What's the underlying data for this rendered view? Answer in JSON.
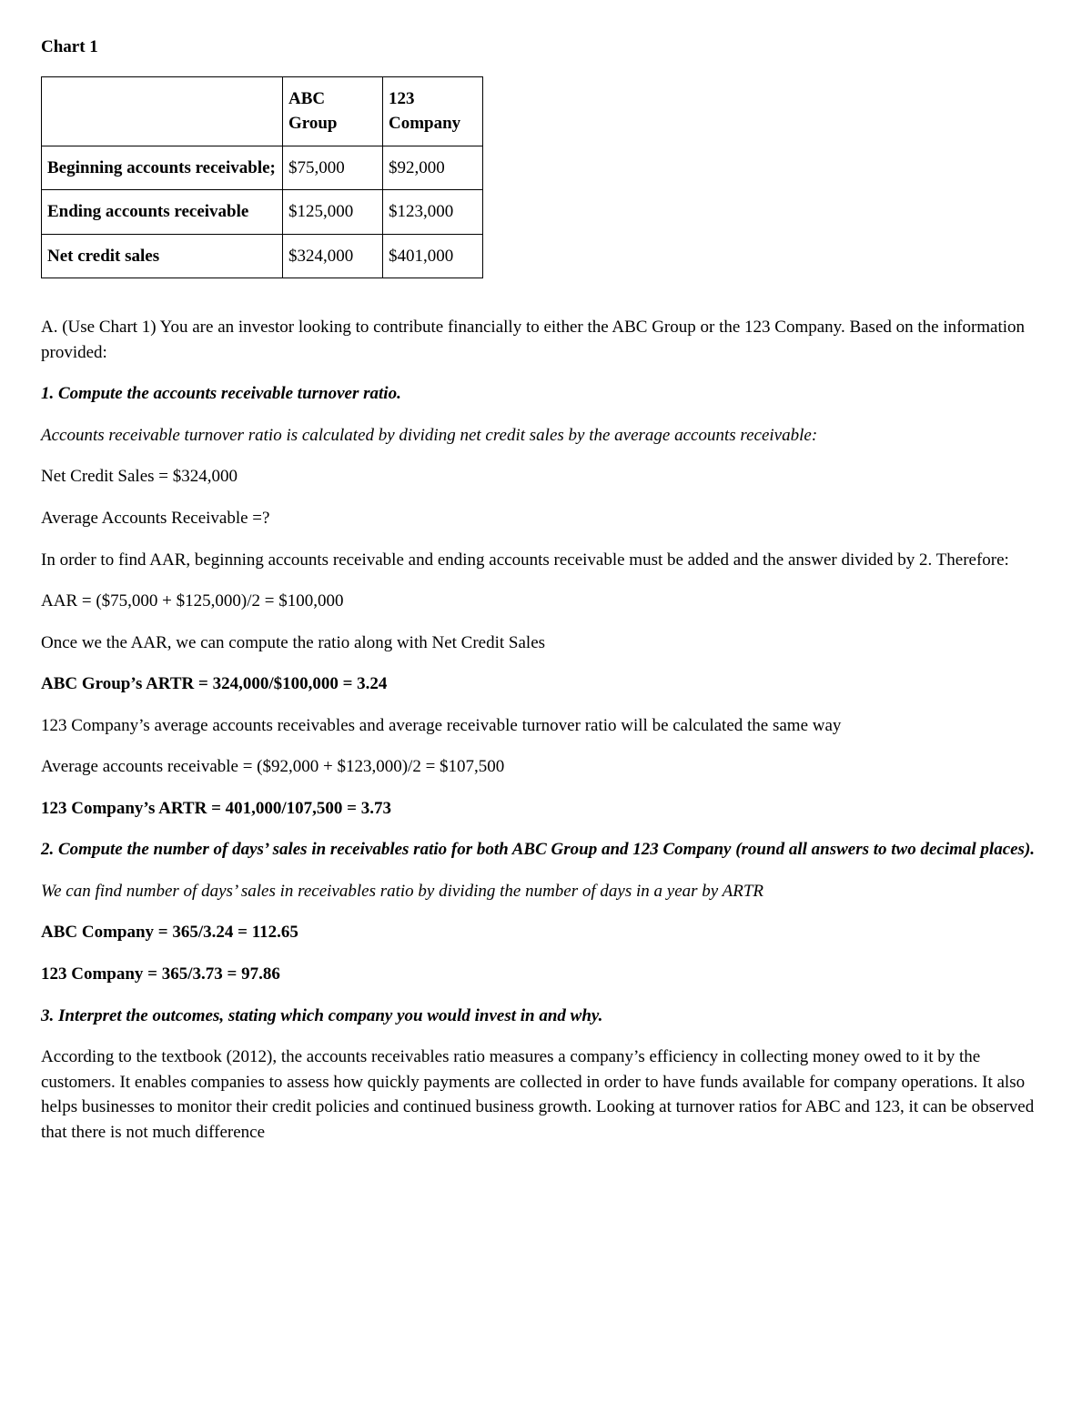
{
  "chartTitle": "Chart 1",
  "table": {
    "headerBlank": "",
    "headerCol1": "ABC Group",
    "headerCol2": "123 Company",
    "row1Label": "Beginning accounts receivable;",
    "row1Col1": "$75,000",
    "row1Col2": "$92,000",
    "row2Label": "Ending accounts receivable",
    "row2Col1": "$125,000",
    "row2Col2": "$123,000",
    "row3Label": "Net credit sales",
    "row3Col1": "$324,000",
    "row3Col2": "$401,000"
  },
  "body": {
    "intro": "A. (Use Chart 1) You are an investor looking to contribute financially to either the ABC Group or the 123 Company. Based on the information provided:",
    "q1": "1. Compute the accounts receivable turnover ratio.",
    "q1exp": "Accounts receivable turnover ratio is calculated by dividing net credit sales by the average accounts receivable:",
    "ncs": "Net Credit Sales = $324,000",
    "aarQ": "Average Accounts Receivable =?",
    "aarExp": "In order to find AAR, beginning accounts receivable and ending accounts receivable must be added and the answer divided by 2. Therefore:",
    "aarCalc": "AAR = ($75,000 + $125,000)/2 = $100,000",
    "onceAAR": "Once we the AAR, we can compute the ratio along with Net Credit Sales",
    "abcARTR": "ABC Group’s ARTR = 324,000/$100,000 = 3.24",
    "company123exp": "123 Company’s average accounts receivables and average receivable turnover ratio will be calculated the same way",
    "aar123": "Average accounts receivable = ($92,000 + $123,000)/2 = $107,500",
    "artr123": "123 Company’s ARTR = 401,000/107,500 = 3.73",
    "q2": "2. Compute the number of days’ sales in receivables ratio for both ABC Group and 123 Company (round all answers to two decimal places).",
    "q2exp": "We can find number of days’ sales in receivables ratio by dividing the number of days in a year by ARTR",
    "abcDays": "ABC Company = 365/3.24 = 112.65",
    "days123": "123 Company = 365/3.73 = 97.86",
    "q3": "3. Interpret the outcomes, stating which company you would invest in and why.",
    "q3body": "According to the textbook (2012), the accounts receivables ratio measures a company’s efficiency in collecting money owed to it by the customers. It enables companies to assess how quickly payments are collected in order to have funds available for company operations. It also helps businesses to monitor their credit policies and continued business growth. Looking at turnover ratios for ABC and 123, it can be observed that there is not much difference"
  }
}
